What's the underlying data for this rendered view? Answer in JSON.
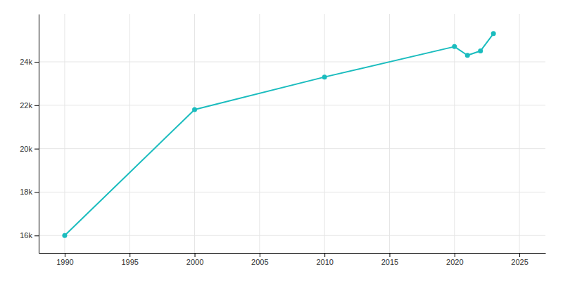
{
  "chart_data": {
    "type": "line",
    "x": [
      1990,
      2000,
      2010,
      2020,
      2021,
      2022,
      2023
    ],
    "values": [
      16000,
      21800,
      23300,
      24700,
      24300,
      24500,
      25300
    ],
    "color": "#1ABCBE",
    "marker": "circle",
    "xlim": [
      1988,
      2027
    ],
    "ylim": [
      15200,
      26200
    ],
    "xticks": [
      1990,
      1995,
      2000,
      2005,
      2010,
      2015,
      2020,
      2025
    ],
    "yticks": [
      {
        "value": 16000,
        "label": "16k"
      },
      {
        "value": 18000,
        "label": "18k"
      },
      {
        "value": 20000,
        "label": "20k"
      },
      {
        "value": 22000,
        "label": "22k"
      },
      {
        "value": 24000,
        "label": "24k"
      }
    ],
    "grid": true
  }
}
